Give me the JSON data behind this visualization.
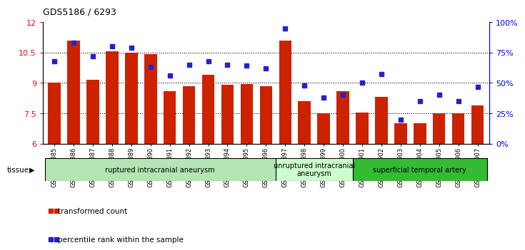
{
  "title": "GDS5186 / 6293",
  "samples": [
    "GSM1306885",
    "GSM1306886",
    "GSM1306887",
    "GSM1306888",
    "GSM1306889",
    "GSM1306890",
    "GSM1306891",
    "GSM1306892",
    "GSM1306893",
    "GSM1306894",
    "GSM1306895",
    "GSM1306896",
    "GSM1306897",
    "GSM1306898",
    "GSM1306899",
    "GSM1306900",
    "GSM1306901",
    "GSM1306902",
    "GSM1306903",
    "GSM1306904",
    "GSM1306905",
    "GSM1306906",
    "GSM1306907"
  ],
  "bar_values": [
    9.0,
    11.1,
    9.15,
    10.55,
    10.48,
    10.42,
    8.6,
    8.85,
    9.4,
    8.9,
    8.95,
    8.85,
    11.1,
    8.1,
    7.5,
    8.6,
    7.55,
    8.3,
    7.0,
    7.0,
    7.5,
    7.5,
    7.9
  ],
  "blue_values": [
    68,
    83,
    72,
    80,
    79,
    63,
    56,
    65,
    68,
    65,
    64,
    62,
    95,
    48,
    38,
    40,
    50,
    57,
    20,
    35,
    40,
    35,
    47
  ],
  "ylim_left": [
    6,
    12
  ],
  "ylim_right": [
    0,
    100
  ],
  "yticks_left": [
    6,
    7.5,
    9,
    10.5,
    12
  ],
  "ytick_labels_left": [
    "6",
    "7.5",
    "9",
    "10.5",
    "12"
  ],
  "yticks_right": [
    0,
    25,
    50,
    75,
    100
  ],
  "ytick_labels_right": [
    "0%",
    "25%",
    "50%",
    "75%",
    "100%"
  ],
  "bar_color": "#cc2200",
  "blue_color": "#2222cc",
  "bg_color": "#ffffff",
  "tissue_groups": [
    {
      "label": "ruptured intracranial aneurysm",
      "start": 0,
      "end": 12,
      "color": "#b3e6b3"
    },
    {
      "label": "unruptured intracranial\naneurysm",
      "start": 12,
      "end": 16,
      "color": "#ccffcc"
    },
    {
      "label": "superficial temporal artery",
      "start": 16,
      "end": 23,
      "color": "#33bb33"
    }
  ],
  "legend_bar_label": "transformed count",
  "legend_blue_label": "percentile rank within the sample",
  "tissue_label": "tissue"
}
